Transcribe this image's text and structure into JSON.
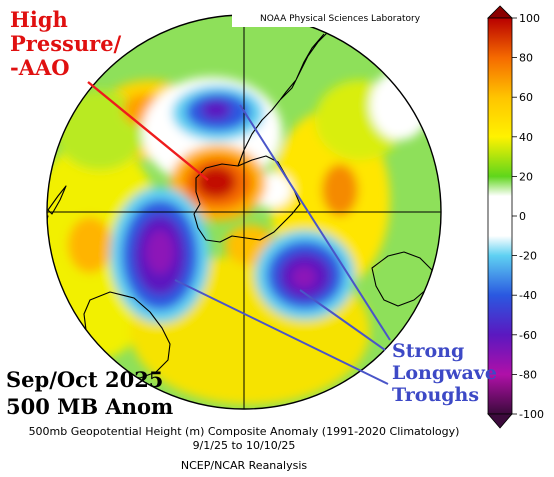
{
  "annotations": {
    "high_pressure": [
      "High",
      "Pressure/",
      "-AAO"
    ],
    "troughs": [
      "Strong",
      "Longwave",
      "Troughs"
    ]
  },
  "period_label": [
    "Sep/Oct 2025",
    "500 MB Anom"
  ],
  "source_label": "NOAA Physical Sciences Laboratory",
  "caption": {
    "line1": "500mb Geopotential Height (m) Composite Anomaly (1991-2020 Climatology)",
    "line2": "9/1/25  to 10/10/25",
    "line3": "NCEP/NCAR Reanalysis"
  },
  "colorbar": {
    "ticks": [
      "100",
      "80",
      "60",
      "40",
      "20",
      "0",
      "-20",
      "-40",
      "-60",
      "-80",
      "-100"
    ],
    "colors": [
      "#b80000",
      "#e23a00",
      "#f56a00",
      "#fa9b00",
      "#ffc400",
      "#fff200",
      "#b5ee00",
      "#5fd61b",
      "#ffffff",
      "#ffffff",
      "#5fd1f2",
      "#1fa4e8",
      "#2a58e0",
      "#2c1dc8",
      "#5b18c0",
      "#8d12b8",
      "#b010a8",
      "#8c0a7a",
      "#5c0a57",
      "#3c0a3c"
    ]
  },
  "colors": {
    "annotation_red": "#e01010",
    "annotation_blue": "#3d49c6",
    "pointer_red": "#ee1c1c",
    "pointer_blue": "#4a55c8"
  }
}
